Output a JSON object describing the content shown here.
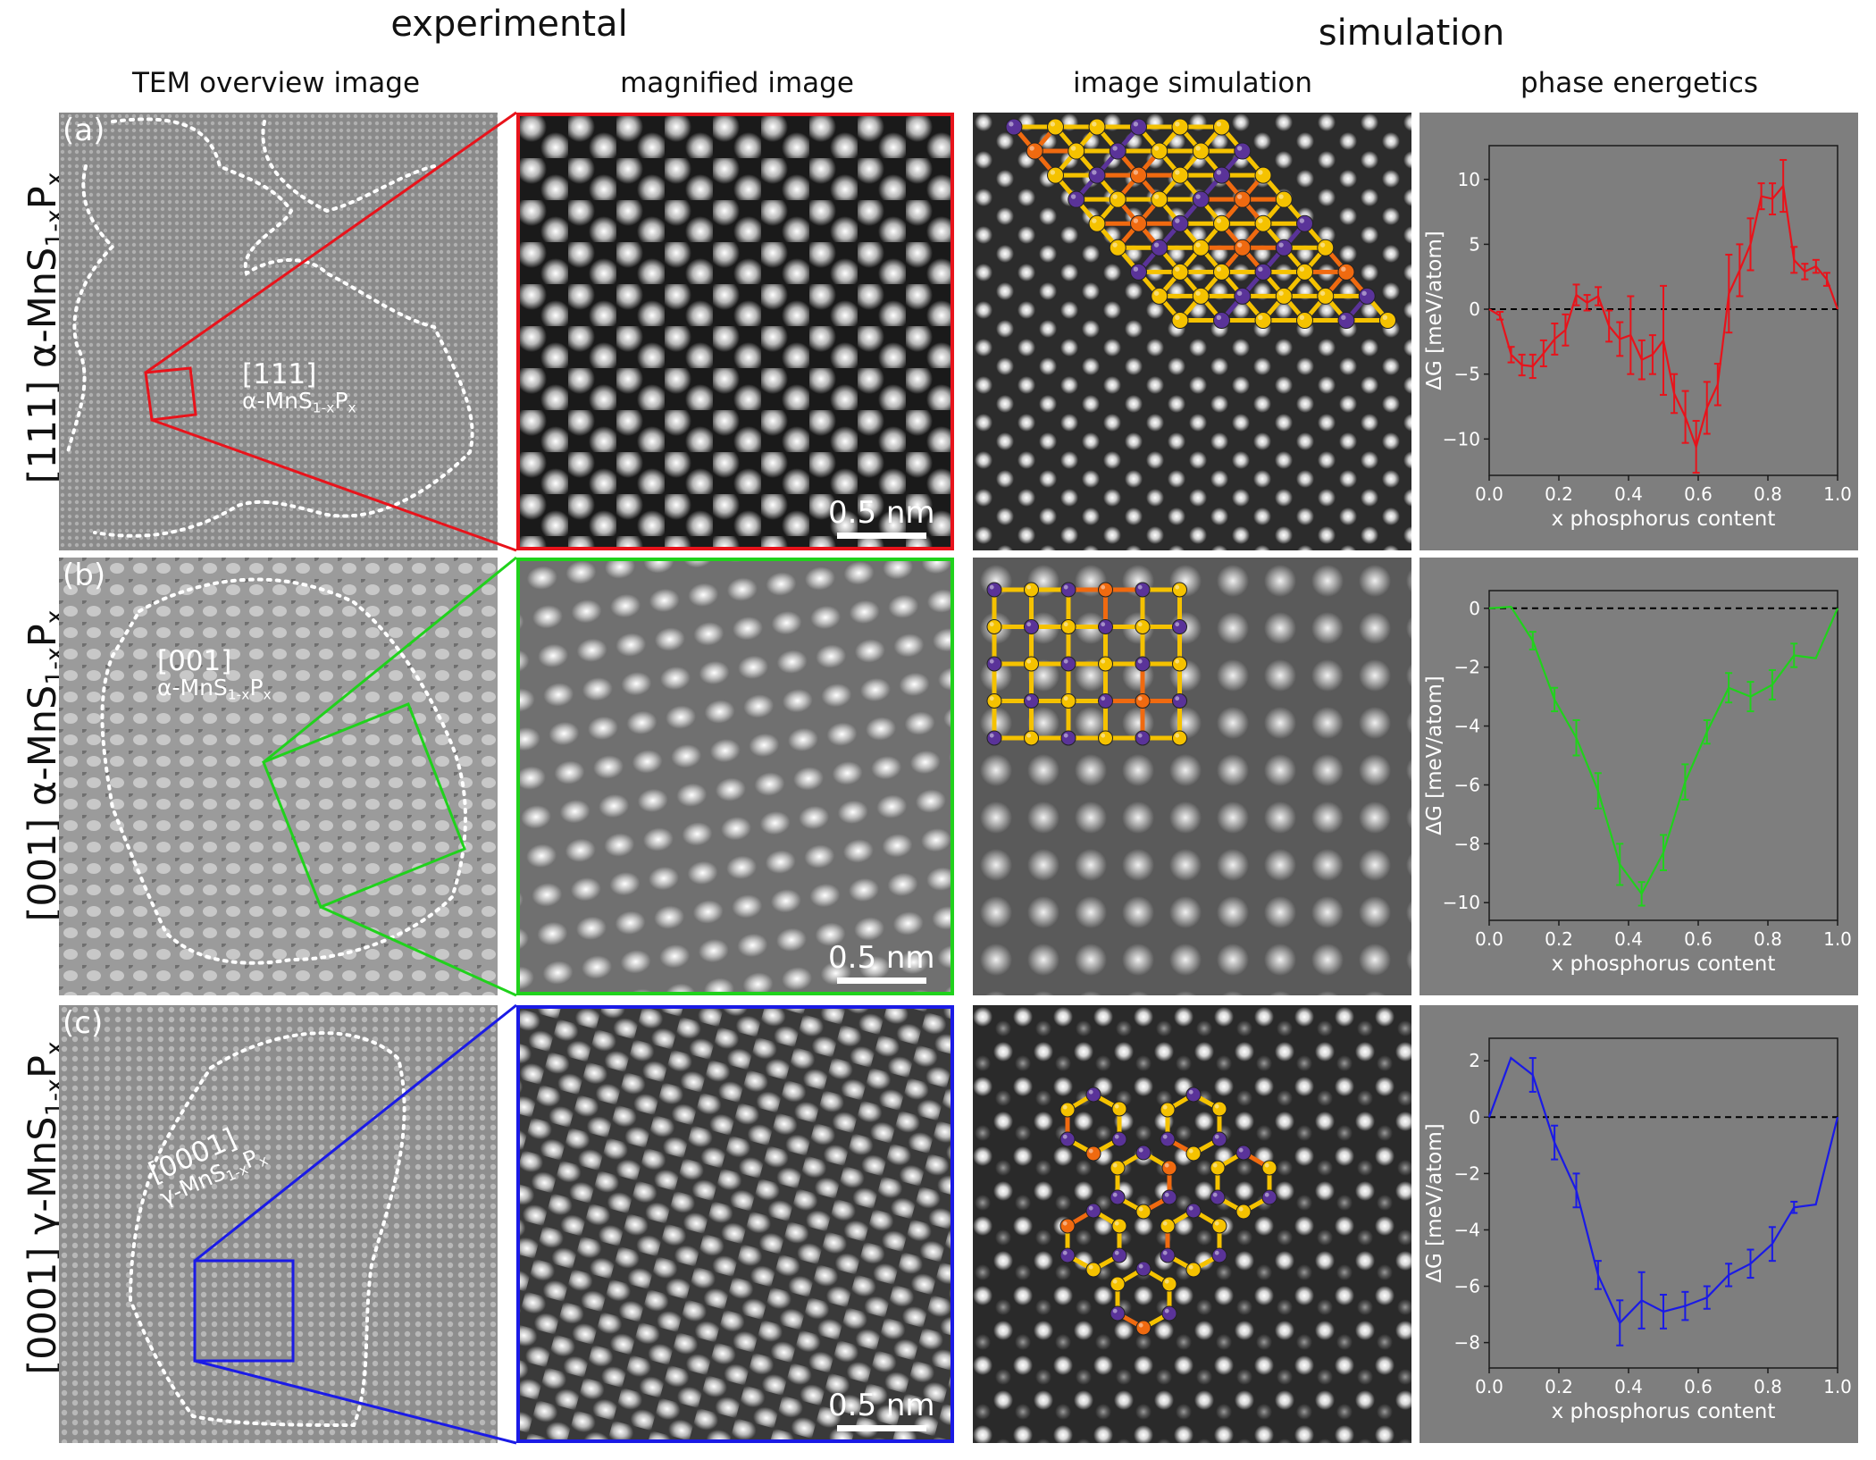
{
  "headers": {
    "experimental": "experimental",
    "simulation": "simulation",
    "col_overview": "TEM overview image",
    "col_magnified": "magnified image",
    "col_imgsim": "image simulation",
    "col_energetics": "phase energetics"
  },
  "rows": [
    {
      "id": "a",
      "panel_label": "(a)",
      "row_prefix": "[111] α-MnS",
      "row_sub": "1-x",
      "row_mid": "P",
      "row_sub2": "x",
      "inset_dir": "[111]",
      "inset_phase": "α-MnS",
      "inset_sub": "1-x",
      "inset_mid": "P",
      "inset_sub2": "x",
      "scalebar": "0.5 nm",
      "color": "#e8131b"
    },
    {
      "id": "b",
      "panel_label": "(b)",
      "row_prefix": "[001] α-MnS",
      "row_sub": "1-x",
      "row_mid": "P",
      "row_sub2": "x",
      "inset_dir": "[001]",
      "inset_phase": "α-MnS",
      "inset_sub": "1-x",
      "inset_mid": "P",
      "inset_sub2": "x",
      "scalebar": "0.5 nm",
      "color": "#20d21c"
    },
    {
      "id": "c",
      "panel_label": "(c)",
      "row_prefix": "[0001] γ-MnS",
      "row_sub": "1-x",
      "row_mid": "P",
      "row_sub2": "x",
      "inset_dir": "[0001]",
      "inset_phase": "γ-MnS",
      "inset_sub": "1-x",
      "inset_mid": "P",
      "inset_sub2": "x",
      "scalebar": "0.5 nm",
      "color": "#1a1ae6"
    }
  ],
  "atom_colors": {
    "mn": "#5a3399",
    "s": "#f5c200",
    "p": "#f06a10",
    "bond_s": "#f5c200",
    "bond_p": "#f06a10"
  },
  "chart_data": [
    {
      "type": "line",
      "panel": "a",
      "color": "#e8131b",
      "xlabel": "x phosphorus content",
      "ylabel": "ΔG [meV/atom]",
      "xlim": [
        0.0,
        1.0
      ],
      "ylim": [
        -12.8,
        12.6
      ],
      "xticks": [
        0.0,
        0.2,
        0.4,
        0.6,
        0.8,
        1.0
      ],
      "xtick_labels": [
        "0.0",
        "0.2",
        "0.4",
        "0.6",
        "0.8",
        "1.0"
      ],
      "yticks": [
        10,
        5,
        0,
        -5,
        -10
      ],
      "ytick_labels": [
        "10",
        "5",
        "0",
        "−5",
        "−10"
      ],
      "zero_line": "dashed",
      "x": [
        0.0,
        0.031,
        0.063,
        0.094,
        0.125,
        0.156,
        0.188,
        0.219,
        0.25,
        0.281,
        0.313,
        0.344,
        0.375,
        0.406,
        0.438,
        0.469,
        0.5,
        0.531,
        0.563,
        0.594,
        0.625,
        0.656,
        0.688,
        0.719,
        0.75,
        0.781,
        0.813,
        0.844,
        0.875,
        0.906,
        0.938,
        0.969,
        1.0
      ],
      "y": [
        0.0,
        -0.5,
        -3.5,
        -4.3,
        -4.4,
        -3.4,
        -2.3,
        -1.6,
        1.1,
        0.5,
        1.0,
        -1.3,
        -2.3,
        -2.0,
        -3.9,
        -3.5,
        -2.4,
        -6.5,
        -8.3,
        -10.6,
        -7.6,
        -5.8,
        1.2,
        3.0,
        5.0,
        8.7,
        8.5,
        9.5,
        3.8,
        2.9,
        3.3,
        2.3,
        0.0
      ],
      "err": [
        0.0,
        0.3,
        0.6,
        0.8,
        0.9,
        1.0,
        1.2,
        1.2,
        0.8,
        0.6,
        0.7,
        1.2,
        1.3,
        3.0,
        1.5,
        1.5,
        4.2,
        1.5,
        2.0,
        2.0,
        2.0,
        1.6,
        3.0,
        2.0,
        2.0,
        1.0,
        1.2,
        2.0,
        1.0,
        0.6,
        0.5,
        0.5,
        0.0
      ]
    },
    {
      "type": "line",
      "panel": "b",
      "color": "#20d21c",
      "xlabel": "x phosphorus content",
      "ylabel": "ΔG [meV/atom]",
      "xlim": [
        0.0,
        1.0
      ],
      "ylim": [
        -10.6,
        0.6
      ],
      "xticks": [
        0.0,
        0.2,
        0.4,
        0.6,
        0.8,
        1.0
      ],
      "xtick_labels": [
        "0.0",
        "0.2",
        "0.4",
        "0.6",
        "0.8",
        "1.0"
      ],
      "yticks": [
        0,
        -2,
        -4,
        -6,
        -8,
        -10
      ],
      "ytick_labels": [
        "0",
        "−2",
        "−4",
        "−6",
        "−8",
        "−10"
      ],
      "zero_line": "dashed",
      "x": [
        0.0,
        0.0625,
        0.125,
        0.1875,
        0.25,
        0.3125,
        0.375,
        0.4375,
        0.5,
        0.5625,
        0.625,
        0.6875,
        0.75,
        0.8125,
        0.875,
        0.9375,
        1.0
      ],
      "y": [
        0.0,
        0.05,
        -1.1,
        -3.1,
        -4.4,
        -6.2,
        -8.7,
        -9.7,
        -8.3,
        -5.9,
        -4.2,
        -2.7,
        -3.0,
        -2.6,
        -1.6,
        -1.7,
        0.0
      ],
      "err": [
        0.0,
        0.0,
        0.3,
        0.4,
        0.6,
        0.6,
        0.7,
        0.4,
        0.6,
        0.6,
        0.4,
        0.5,
        0.5,
        0.5,
        0.4,
        0.0,
        0.0
      ]
    },
    {
      "type": "line",
      "panel": "c",
      "color": "#1a1ae6",
      "xlabel": "x phosphorus content",
      "ylabel": "ΔG [meV/atom]",
      "xlim": [
        0.0,
        1.0
      ],
      "ylim": [
        -8.9,
        2.8
      ],
      "xticks": [
        0.0,
        0.2,
        0.4,
        0.6,
        0.8,
        1.0
      ],
      "xtick_labels": [
        "0.0",
        "0.2",
        "0.4",
        "0.6",
        "0.8",
        "1.0"
      ],
      "yticks": [
        2,
        0,
        -2,
        -4,
        -6,
        -8
      ],
      "ytick_labels": [
        "2",
        "0",
        "−2",
        "−4",
        "−6",
        "−8"
      ],
      "zero_line": "dashed",
      "x": [
        0.0,
        0.0625,
        0.125,
        0.1875,
        0.25,
        0.3125,
        0.375,
        0.4375,
        0.5,
        0.5625,
        0.625,
        0.6875,
        0.75,
        0.8125,
        0.875,
        0.9375,
        1.0
      ],
      "y": [
        0.0,
        2.1,
        1.5,
        -0.9,
        -2.6,
        -5.6,
        -7.3,
        -6.5,
        -6.9,
        -6.7,
        -6.4,
        -5.6,
        -5.2,
        -4.5,
        -3.2,
        -3.1,
        0.0
      ],
      "err": [
        0.0,
        0.0,
        0.6,
        0.6,
        0.6,
        0.5,
        0.8,
        1.0,
        0.6,
        0.5,
        0.4,
        0.4,
        0.5,
        0.6,
        0.2,
        0.0,
        0.0
      ]
    }
  ]
}
